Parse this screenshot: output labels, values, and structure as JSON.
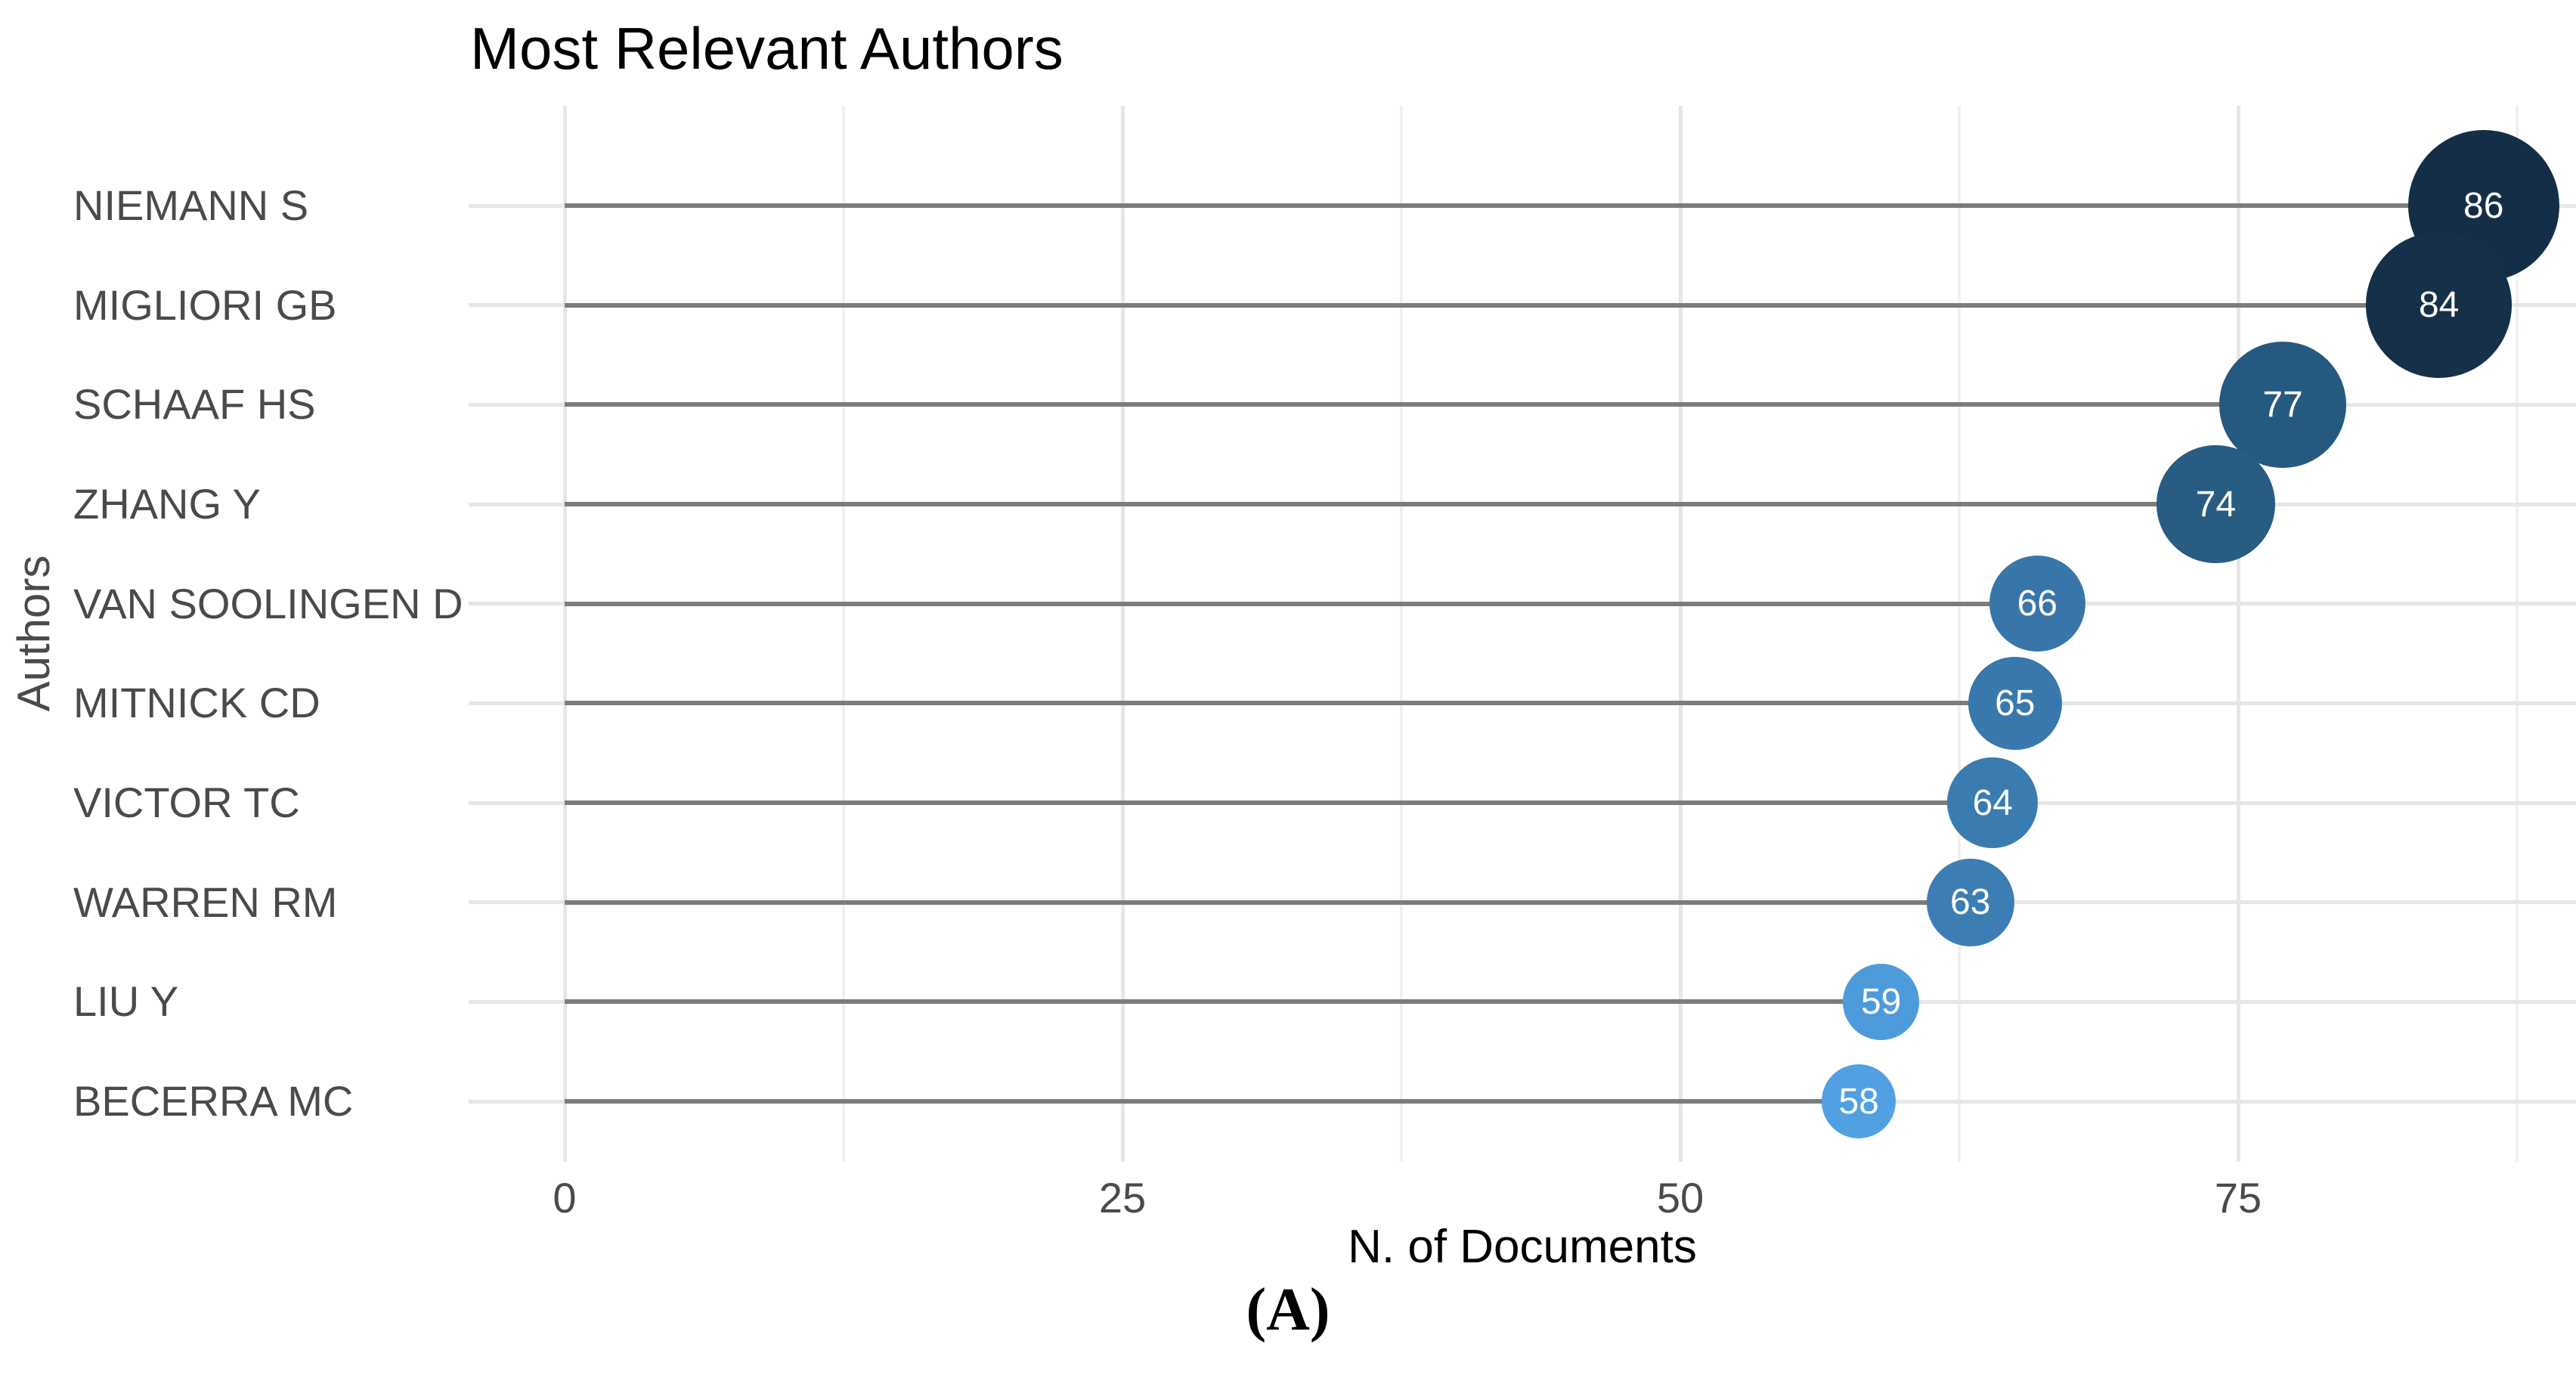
{
  "page": {
    "background": "#ffffff"
  },
  "chart_data": {
    "type": "scatter",
    "variant": "lollipop-dot-plot",
    "title": "Most Relevant Authors",
    "xlabel": "N. of Documents",
    "ylabel": "Authors",
    "caption": "(A)",
    "legend": "none",
    "grid": "light gray major + minor vertical gridlines; light gray horizontal gridline per author row",
    "x_ticks": [
      0,
      25,
      50,
      75
    ],
    "x_minor_ticks": [
      12.5,
      37.5,
      62.5,
      87.5
    ],
    "xlim": [
      -4.3,
      90.2
    ],
    "categories": [
      "NIEMANN S",
      "MIGLIORI GB",
      "SCHAAF HS",
      "ZHANG Y",
      "VAN SOOLINGEN D",
      "MITNICK CD",
      "VICTOR TC",
      "WARREN RM",
      "LIU Y",
      "BECERRA MC"
    ],
    "values": [
      86,
      84,
      77,
      74,
      66,
      65,
      64,
      63,
      59,
      58
    ],
    "points": [
      {
        "author": "NIEMANN S",
        "value": 86,
        "color": "#152e47"
      },
      {
        "author": "MIGLIORI GB",
        "value": 84,
        "color": "#16304a"
      },
      {
        "author": "SCHAAF HS",
        "value": 77,
        "color": "#26597f"
      },
      {
        "author": "ZHANG Y",
        "value": 74,
        "color": "#285c82"
      },
      {
        "author": "VAN SOOLINGEN D",
        "value": 66,
        "color": "#3876aa"
      },
      {
        "author": "MITNICK CD",
        "value": 65,
        "color": "#3978ac"
      },
      {
        "author": "VICTOR TC",
        "value": 64,
        "color": "#3a7bb0"
      },
      {
        "author": "WARREN RM",
        "value": 63,
        "color": "#3c7eb4"
      },
      {
        "author": "LIU Y",
        "value": 59,
        "color": "#4e9bdb"
      },
      {
        "author": "BECERRA MC",
        "value": 58,
        "color": "#51a0e1"
      }
    ]
  },
  "styles": {
    "stem_color": "#7c7c7c",
    "grid_major_color": "#e6e6e6",
    "grid_minor_color": "#f0f0f0",
    "bubble_label_color": "#ffffff",
    "axis_text_color": "#4a4a4a",
    "title_color": "#000000"
  }
}
